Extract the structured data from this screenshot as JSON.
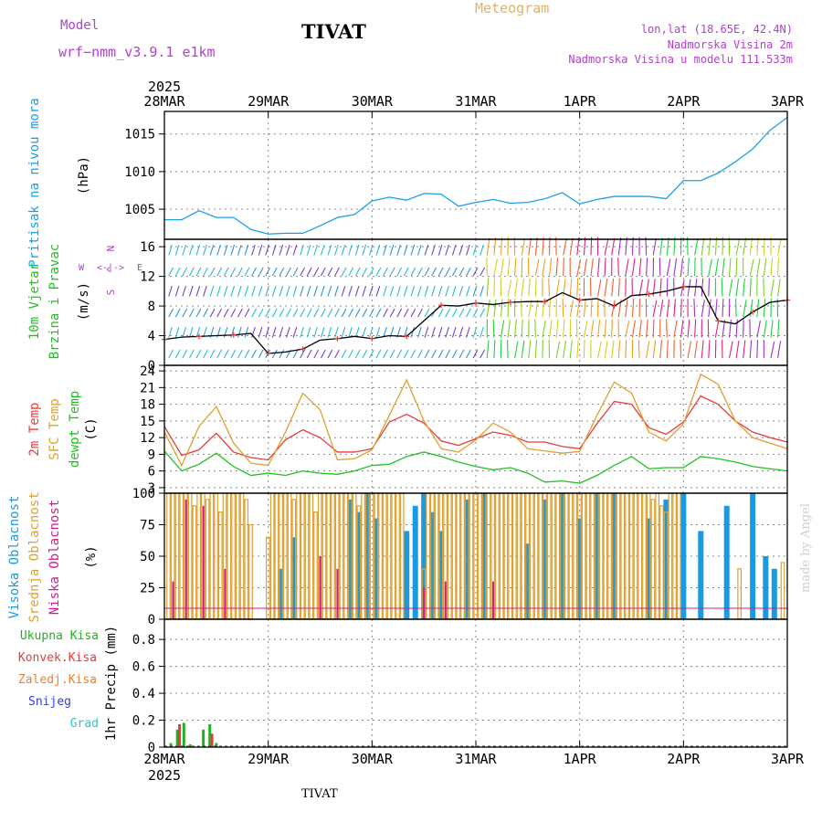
{
  "header": {
    "model_label": "Model",
    "model_name": "wrf−nmm_v3.9.1 e1km",
    "station": "TIVAT",
    "product": "Meteogram",
    "coords": "lon,lat (18.65E, 42.4N)",
    "elevation": "Nadmorska Visina 2m",
    "model_elevation": "Nadmorska Visina u modelu 111.533m",
    "footer_station": "TIVAT",
    "watermark": "made by Angel"
  },
  "colors": {
    "pressure": "#1aa0e8",
    "temp2m": "#e83c3c",
    "sfc": "#e0a030",
    "dewpt": "#22c022",
    "high_cloud": "#1a9ae0",
    "mid_cloud": "#e0a030",
    "low_cloud": "#d01c8b",
    "total_precip": "#22b022",
    "conv_precip": "#e83c3c",
    "frz_precip": "#f08030",
    "snow": "#3a3ae0",
    "graupel": "#2ac8c8",
    "header_purple": "#b040d0",
    "header_orange": "#e8b060"
  },
  "chart_data": [
    {
      "type": "line",
      "id": "pressure",
      "ylabel_rot": "Pritisak na nivou mora",
      "unit": "(hPa)",
      "yticks": [
        1005,
        1010,
        1015
      ],
      "ylim": [
        1001,
        1018
      ],
      "series": [
        {
          "x": [
            0,
            4,
            8,
            12,
            16,
            20,
            24,
            28,
            32,
            36,
            40,
            44,
            48,
            52,
            56,
            60,
            64,
            68,
            72,
            76,
            80,
            84,
            88,
            92,
            96,
            100,
            104,
            108,
            112,
            116,
            120,
            124,
            128,
            132,
            136,
            140,
            144
          ],
          "values": [
            1003.6,
            1003.6,
            1004.8,
            1003.9,
            1003.9,
            1002.3,
            1001.7,
            1001.8,
            1001.8,
            1002.8,
            1003.9,
            1004.3,
            1006.1,
            1006.6,
            1006.2,
            1007.1,
            1007.0,
            1005.4,
            1005.9,
            1006.3,
            1005.8,
            1005.9,
            1006.4,
            1007.2,
            1005.7,
            1006.3,
            1006.7,
            1006.7,
            1006.7,
            1006.4,
            1008.8,
            1008.8,
            1009.8,
            1011.3,
            1013.0,
            1015.5,
            1017.2
          ]
        }
      ]
    },
    {
      "type": "line",
      "id": "wind",
      "ylabel_rot": [
        "10m Vjetar",
        "Brzina i Pravac"
      ],
      "unit": "(m/s)",
      "compass": [
        "N",
        "E",
        "W",
        "S"
      ],
      "yticks": [
        0,
        4,
        8,
        12,
        16
      ],
      "ylim": [
        0,
        17
      ],
      "series": [
        {
          "name": "speed",
          "x": [
            0,
            4,
            8,
            12,
            16,
            20,
            24,
            28,
            32,
            36,
            40,
            44,
            48,
            52,
            56,
            60,
            64,
            68,
            72,
            76,
            80,
            84,
            88,
            92,
            96,
            100,
            104,
            108,
            112,
            116,
            120,
            124,
            128,
            132,
            136,
            140,
            144
          ],
          "values": [
            3.5,
            3.8,
            3.9,
            4.0,
            4.1,
            4.3,
            1.6,
            1.8,
            2.2,
            3.4,
            3.6,
            3.9,
            3.6,
            4.0,
            3.9,
            6.0,
            8.1,
            8.0,
            8.4,
            8.2,
            8.5,
            8.6,
            8.6,
            9.8,
            8.8,
            9.0,
            8.0,
            9.4,
            9.6,
            10.0,
            10.6,
            10.6,
            6.0,
            5.6,
            7.2,
            8.5,
            8.8
          ]
        }
      ]
    },
    {
      "type": "line",
      "id": "temperature",
      "ylabel_rot": [
        "2m Temp",
        "SFC Temp",
        "dewpt Temp"
      ],
      "unit": "(C)",
      "yticks": [
        3,
        6,
        9,
        12,
        15,
        18,
        21,
        24
      ],
      "ylim": [
        2,
        25
      ],
      "series": [
        {
          "name": "2m Temp",
          "x": [
            0,
            4,
            8,
            12,
            16,
            20,
            24,
            28,
            32,
            36,
            40,
            44,
            48,
            52,
            56,
            60,
            64,
            68,
            72,
            76,
            80,
            84,
            88,
            92,
            96,
            100,
            104,
            108,
            112,
            116,
            120,
            124,
            128,
            132,
            136,
            140,
            144
          ],
          "values": [
            14.0,
            8.8,
            9.8,
            12.8,
            9.4,
            8.4,
            8.0,
            11.6,
            13.4,
            12.0,
            9.4,
            9.4,
            10.0,
            14.8,
            16.2,
            14.6,
            11.4,
            10.6,
            11.8,
            13.0,
            12.4,
            11.2,
            11.2,
            10.4,
            10.0,
            14.5,
            18.5,
            18.0,
            13.8,
            12.6,
            14.8,
            19.5,
            18.0,
            15.0,
            13.0,
            12.0,
            11.2
          ]
        },
        {
          "name": "SFC Temp",
          "x": [
            0,
            4,
            8,
            12,
            16,
            20,
            24,
            28,
            32,
            36,
            40,
            44,
            48,
            52,
            56,
            60,
            64,
            68,
            72,
            76,
            80,
            84,
            88,
            92,
            96,
            100,
            104,
            108,
            112,
            116,
            120,
            124,
            128,
            132,
            136,
            140,
            144
          ],
          "values": [
            13.0,
            7.0,
            14.0,
            17.6,
            11.0,
            7.4,
            7.0,
            13.0,
            20.0,
            17.0,
            8.0,
            8.2,
            9.8,
            16.0,
            22.4,
            15.0,
            10.0,
            9.4,
            11.6,
            14.6,
            13.0,
            10.0,
            9.6,
            9.2,
            9.5,
            16.0,
            22.0,
            20.0,
            13.0,
            11.4,
            14.5,
            23.4,
            21.6,
            15.0,
            12.0,
            11.0,
            10.0
          ]
        },
        {
          "name": "dewpt Temp",
          "x": [
            0,
            4,
            8,
            12,
            16,
            20,
            24,
            28,
            32,
            36,
            40,
            44,
            48,
            52,
            56,
            60,
            64,
            68,
            72,
            76,
            80,
            84,
            88,
            92,
            96,
            100,
            104,
            108,
            112,
            116,
            120,
            124,
            128,
            132,
            136,
            140,
            144
          ],
          "values": [
            9.6,
            6.0,
            7.2,
            9.2,
            6.8,
            5.2,
            5.6,
            5.2,
            6.0,
            5.6,
            5.4,
            6.0,
            7.0,
            7.2,
            8.6,
            9.4,
            8.6,
            7.6,
            6.8,
            6.2,
            6.6,
            5.6,
            4.0,
            4.2,
            3.8,
            5.2,
            7.0,
            8.6,
            6.4,
            6.6,
            6.6,
            8.6,
            8.2,
            7.6,
            6.8,
            6.4,
            6.0
          ]
        }
      ]
    },
    {
      "type": "bar",
      "id": "clouds",
      "ylabel_rot": [
        "Visoka Oblacnost",
        "Srednja Oblacnost",
        "Niska Oblacnost"
      ],
      "unit": "(%)",
      "yticks": [
        0,
        25,
        50,
        75,
        100
      ],
      "ylim": [
        0,
        100
      ],
      "series": [
        {
          "name": "Visoka Oblacnost",
          "x": [
            27,
            30,
            43,
            45,
            47,
            49,
            56,
            58,
            60,
            62,
            64,
            70,
            74,
            84,
            88,
            92,
            96,
            100,
            104,
            112,
            116,
            120,
            124,
            130,
            136,
            139,
            141
          ],
          "values": [
            40,
            65,
            95,
            85,
            100,
            80,
            70,
            90,
            100,
            85,
            70,
            95,
            100,
            60,
            95,
            100,
            80,
            100,
            100,
            80,
            95,
            100,
            70,
            90,
            100,
            50,
            40
          ]
        },
        {
          "name": "Srednja Oblacnost",
          "x": [
            1,
            2,
            3,
            4,
            5,
            6,
            7,
            8,
            9,
            10,
            11,
            12,
            13,
            14,
            15,
            16,
            17,
            18,
            19,
            20,
            24,
            25,
            26,
            27,
            28,
            29,
            30,
            31,
            32,
            33,
            34,
            35,
            36,
            37,
            38,
            39,
            40,
            41,
            42,
            43,
            44,
            45,
            46,
            47,
            48,
            49,
            50,
            51,
            52,
            53,
            54,
            55,
            60,
            61,
            62,
            63,
            64,
            65,
            66,
            67,
            68,
            69,
            70,
            71,
            72,
            73,
            74,
            75,
            76,
            77,
            78,
            79,
            80,
            81,
            82,
            83,
            84,
            85,
            86,
            87,
            88,
            89,
            90,
            91,
            92,
            93,
            94,
            95,
            96,
            97,
            98,
            99,
            100,
            101,
            102,
            103,
            104,
            105,
            106,
            107,
            108,
            109,
            110,
            111,
            112,
            113,
            114,
            115,
            116,
            117,
            118,
            119,
            133,
            143
          ],
          "values": [
            100,
            100,
            100,
            100,
            100,
            100,
            90,
            100,
            100,
            95,
            100,
            100,
            85,
            100,
            100,
            100,
            100,
            100,
            95,
            75,
            65,
            100,
            100,
            100,
            100,
            100,
            95,
            100,
            100,
            100,
            100,
            85,
            100,
            100,
            100,
            100,
            100,
            100,
            100,
            100,
            100,
            90,
            100,
            100,
            100,
            100,
            100,
            100,
            100,
            100,
            100,
            100,
            40,
            100,
            100,
            100,
            100,
            100,
            100,
            100,
            100,
            100,
            100,
            100,
            100,
            100,
            100,
            100,
            100,
            100,
            100,
            100,
            100,
            100,
            100,
            100,
            100,
            100,
            100,
            100,
            100,
            100,
            100,
            100,
            100,
            100,
            100,
            100,
            100,
            100,
            100,
            100,
            100,
            100,
            100,
            100,
            100,
            100,
            100,
            100,
            100,
            100,
            100,
            100,
            100,
            95,
            100,
            90,
            85,
            100,
            100,
            100,
            40,
            45
          ]
        },
        {
          "name": "Niska Oblacnost",
          "x": [
            2,
            5,
            9,
            14,
            36,
            40,
            60,
            65,
            76
          ],
          "values": [
            30,
            95,
            90,
            40,
            50,
            40,
            25,
            30,
            30
          ]
        }
      ]
    },
    {
      "type": "bar",
      "id": "precip",
      "ylabel_rot": "1hr Precip",
      "unit": "(mm)",
      "yticks": [
        0,
        0.2,
        0.4,
        0.6,
        0.8
      ],
      "ylim": [
        0,
        0.95
      ],
      "legend": [
        "Ukupna Kisa",
        "Konvek.Kisa",
        "Zaledj.Kisa",
        "Snijeg",
        "Grad"
      ],
      "series": [
        {
          "name": "Ukupna Kisa",
          "x": [
            1.5,
            3,
            4.5,
            6,
            9,
            10.5,
            12
          ],
          "values": [
            0.03,
            0.13,
            0.18,
            0.02,
            0.13,
            0.17,
            0.03
          ]
        },
        {
          "name": "Konvek.Kisa",
          "x": [
            3.5,
            11
          ],
          "values": [
            0.17,
            0.1
          ]
        }
      ]
    }
  ],
  "xaxis": {
    "year": "2025",
    "ticks": [
      "28MAR",
      "29MAR",
      "30MAR",
      "31MAR",
      "1APR",
      "2APR",
      "3APR"
    ],
    "xlim": [
      0,
      144
    ]
  }
}
